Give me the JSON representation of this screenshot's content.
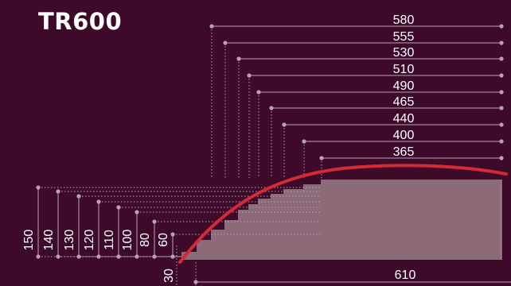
{
  "title": "TR600",
  "diagram": {
    "top_widths": [
      "580",
      "555",
      "530",
      "510",
      "490",
      "465",
      "440",
      "400",
      "365"
    ],
    "left_heights": [
      "150",
      "140",
      "130",
      "120",
      "110",
      "100",
      "80",
      "60",
      "30"
    ],
    "bottom_width": "610"
  },
  "colors": {
    "background": "#3d0a2a",
    "profile_fill": "#8b6b78",
    "curve": "#d42a33",
    "dimension_line": "#b9a2ae",
    "text": "#ffffff"
  }
}
